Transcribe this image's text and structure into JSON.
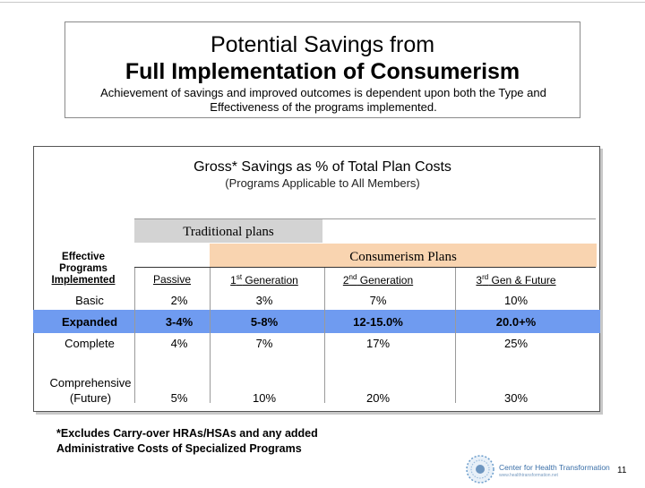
{
  "title_box": {
    "line1": "Potential Savings from",
    "line2": "Full Implementation of Consumerism",
    "subtitle": "Achievement of savings and improved outcomes is dependent upon both the Type and Effectiveness of the programs implemented."
  },
  "table": {
    "title": "Gross* Savings as % of Total Plan Costs",
    "subtitle": "(Programs Applicable to All Members)",
    "traditional_label": "Traditional plans",
    "consumerism_label": "Consumerism Plans",
    "row_header": [
      "Effective",
      "Programs",
      "Implemented"
    ],
    "columns": [
      {
        "label": "Passive"
      },
      {
        "label": "1",
        "sup": "st",
        "rest": " Generation"
      },
      {
        "label": "2",
        "sup": "nd",
        "rest": " Generation"
      },
      {
        "label": "3",
        "sup": "rd",
        "rest": " Gen & Future"
      }
    ],
    "rows": [
      {
        "label": "Basic",
        "values": [
          "2%",
          "3%",
          "7%",
          "10%"
        ]
      },
      {
        "label": "Expanded",
        "values": [
          "3-4%",
          "5-8%",
          "12-15.0%",
          "20.0+%"
        ]
      },
      {
        "label": "Complete",
        "values": [
          "4%",
          "7%",
          "17%",
          "25%"
        ]
      },
      {
        "label": "Comprehensive",
        "label2": "(Future)",
        "values": [
          "5%",
          "10%",
          "20%",
          "30%"
        ]
      }
    ],
    "highlight_color": "#6f9bf0"
  },
  "footnote": {
    "line1": "*Excludes Carry-over HRAs/HSAs and any added",
    "line2": "Administrative Costs of Specialized Programs"
  },
  "logo": {
    "text": "Center for Health Transformation",
    "small": "www.healthtransformation.net"
  },
  "page_number": "11"
}
